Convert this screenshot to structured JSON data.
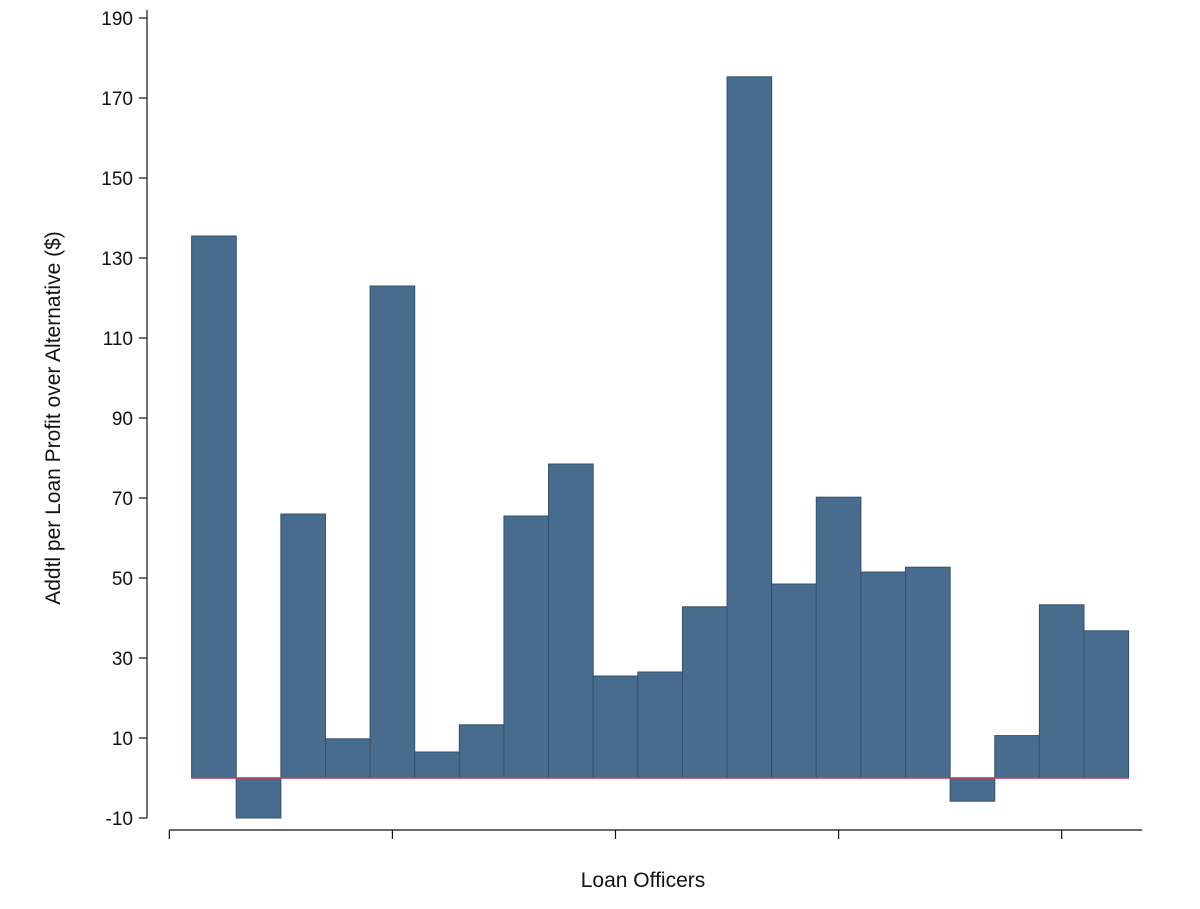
{
  "chart_data": {
    "type": "bar",
    "xlabel": "Loan Officers",
    "ylabel": "Addtl per Loan Profit over Alternative ($)",
    "ylim": [
      -13,
      192
    ],
    "yticks": [
      -10,
      10,
      30,
      50,
      70,
      90,
      110,
      130,
      150,
      170,
      190
    ],
    "ytick_labels": [
      "-10",
      "10",
      "30",
      "50",
      "70",
      "90",
      "110",
      "130",
      "150",
      "170",
      "190"
    ],
    "xticks": [
      0,
      5,
      10,
      15,
      20
    ],
    "xlim": [
      -0.5,
      21.8
    ],
    "bar_color": "#486c8d",
    "bar_edge_color": "#33506b",
    "reference_line": {
      "y": 0,
      "color": "#c0395a"
    },
    "grid": false,
    "legend": "none",
    "bars": [
      {
        "x": 1,
        "value": 135.5
      },
      {
        "x": 2,
        "value": -10
      },
      {
        "x": 3,
        "value": 66
      },
      {
        "x": 4,
        "value": 9.8
      },
      {
        "x": 5,
        "value": 123
      },
      {
        "x": 6,
        "value": 6.5
      },
      {
        "x": 7,
        "value": 13.3
      },
      {
        "x": 8,
        "value": 65.5
      },
      {
        "x": 9,
        "value": 78.5
      },
      {
        "x": 10,
        "value": 25.5
      },
      {
        "x": 11,
        "value": 26.5
      },
      {
        "x": 12,
        "value": 42.8
      },
      {
        "x": 13,
        "value": 175.3
      },
      {
        "x": 14,
        "value": 48.5
      },
      {
        "x": 15,
        "value": 70.2
      },
      {
        "x": 16,
        "value": 51.5
      },
      {
        "x": 17,
        "value": 52.7
      },
      {
        "x": 18,
        "value": -5.8
      },
      {
        "x": 19,
        "value": 10.6
      },
      {
        "x": 20,
        "value": 43.3
      },
      {
        "x": 21,
        "value": 36.8
      }
    ]
  }
}
